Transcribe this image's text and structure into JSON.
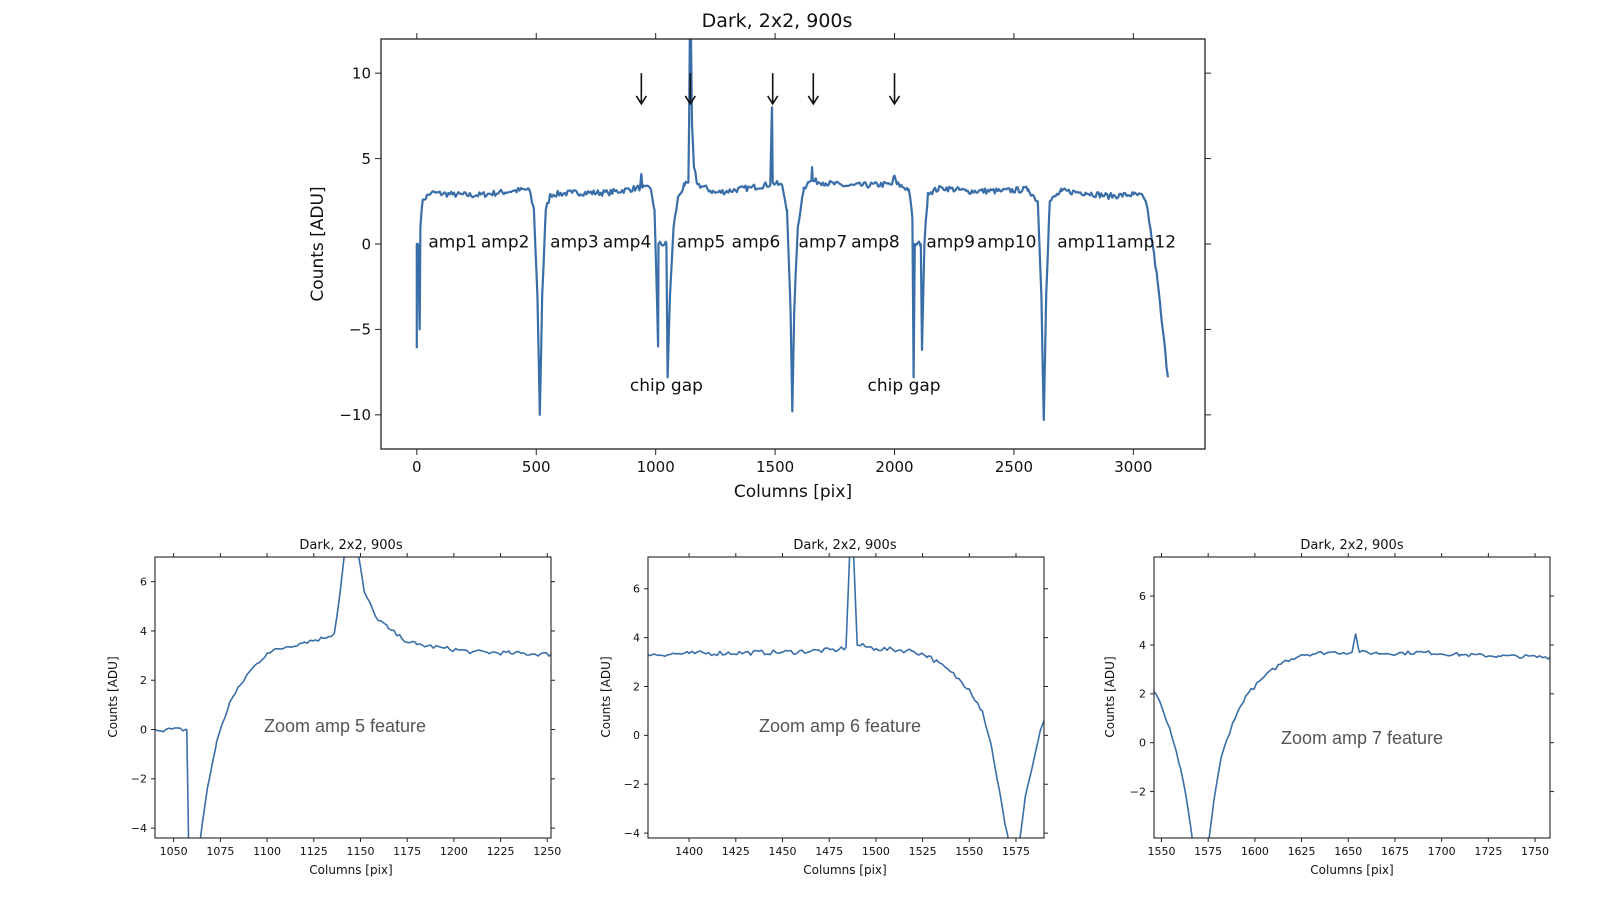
{
  "chart_data": [
    {
      "id": "main",
      "type": "line",
      "title": "Dark, 2x2, 900s",
      "xlabel": "Columns [pix]",
      "ylabel": "Counts [ADU]",
      "xlim": [
        -150,
        3300
      ],
      "ylim": [
        -12,
        12
      ],
      "xticks": [
        0,
        500,
        1000,
        1500,
        2000,
        2500,
        3000
      ],
      "yticks": [
        -10,
        -5,
        0,
        5,
        10
      ],
      "series_color": "#3a6ea8",
      "amp_labels": [
        {
          "text": "amp1",
          "x": 150
        },
        {
          "text": "amp2",
          "x": 370
        },
        {
          "text": "amp3",
          "x": 660
        },
        {
          "text": "amp4",
          "x": 880
        },
        {
          "text": "amp5",
          "x": 1190
        },
        {
          "text": "amp6",
          "x": 1420
        },
        {
          "text": "amp7",
          "x": 1700
        },
        {
          "text": "amp8",
          "x": 1920
        },
        {
          "text": "amp9",
          "x": 2235
        },
        {
          "text": "amp10",
          "x": 2470
        },
        {
          "text": "amp11amp12",
          "x": 2930
        }
      ],
      "annotations": [
        {
          "text": "chip gap",
          "x": 1045,
          "y": -8.6
        },
        {
          "text": "chip gap",
          "x": 2040,
          "y": -8.6
        }
      ],
      "arrows_at_x": [
        940,
        1145,
        1490,
        1660,
        2000
      ],
      "key_points": [
        [
          0,
          -6.1
        ],
        [
          0,
          0
        ],
        [
          5,
          0
        ],
        [
          12,
          -5
        ],
        [
          15,
          1
        ],
        [
          25,
          2.6
        ],
        [
          60,
          3
        ],
        [
          150,
          2.9
        ],
        [
          250,
          2.85
        ],
        [
          400,
          3.1
        ],
        [
          470,
          3.2
        ],
        [
          490,
          2
        ],
        [
          505,
          -3
        ],
        [
          515,
          -10
        ],
        [
          525,
          -3
        ],
        [
          540,
          2
        ],
        [
          560,
          2.9
        ],
        [
          650,
          3
        ],
        [
          800,
          3
        ],
        [
          935,
          3.3
        ],
        [
          940,
          4.1
        ],
        [
          945,
          3.3
        ],
        [
          980,
          3.2
        ],
        [
          995,
          2
        ],
        [
          1005,
          -3
        ],
        [
          1010,
          -6
        ],
        [
          1012,
          0
        ],
        [
          1045,
          0
        ],
        [
          1050,
          -7.8
        ],
        [
          1060,
          -3
        ],
        [
          1075,
          1
        ],
        [
          1095,
          2.8
        ],
        [
          1120,
          3.4
        ],
        [
          1137,
          3.6
        ],
        [
          1140,
          7
        ],
        [
          1143,
          12
        ],
        [
          1148,
          12
        ],
        [
          1152,
          7
        ],
        [
          1160,
          4.5
        ],
        [
          1175,
          3.5
        ],
        [
          1250,
          3
        ],
        [
          1400,
          3.3
        ],
        [
          1480,
          3.5
        ],
        [
          1487,
          8
        ],
        [
          1490,
          3.6
        ],
        [
          1530,
          3.4
        ],
        [
          1550,
          2
        ],
        [
          1565,
          -4
        ],
        [
          1572,
          -9.8
        ],
        [
          1580,
          -4
        ],
        [
          1595,
          1
        ],
        [
          1620,
          3.3
        ],
        [
          1640,
          3.6
        ],
        [
          1652,
          3.7
        ],
        [
          1655,
          4.5
        ],
        [
          1658,
          3.7
        ],
        [
          1700,
          3.6
        ],
        [
          1800,
          3.4
        ],
        [
          1990,
          3.5
        ],
        [
          2000,
          4
        ],
        [
          2010,
          3.5
        ],
        [
          2060,
          3.2
        ],
        [
          2075,
          1.5
        ],
        [
          2080,
          -7.8
        ],
        [
          2085,
          0
        ],
        [
          2110,
          0
        ],
        [
          2115,
          -6.2
        ],
        [
          2125,
          0
        ],
        [
          2140,
          3
        ],
        [
          2200,
          3.3
        ],
        [
          2300,
          3.1
        ],
        [
          2450,
          3.1
        ],
        [
          2560,
          3.2
        ],
        [
          2600,
          2.5
        ],
        [
          2615,
          -3
        ],
        [
          2625,
          -10.3
        ],
        [
          2635,
          -3
        ],
        [
          2650,
          2.5
        ],
        [
          2700,
          3.1
        ],
        [
          2800,
          3
        ],
        [
          2900,
          2.8
        ],
        [
          3000,
          2.9
        ],
        [
          3040,
          2.8
        ],
        [
          3060,
          2
        ],
        [
          3080,
          0
        ],
        [
          3100,
          -2
        ],
        [
          3115,
          -4
        ],
        [
          3145,
          -7.8
        ]
      ]
    },
    {
      "id": "zoom5",
      "type": "line",
      "title": "Dark, 2x2, 900s",
      "xlabel": "Columns [pix]",
      "ylabel": "Counts [ADU]",
      "note": "Zoom amp 5 feature",
      "xlim": [
        1040,
        1252
      ],
      "ylim": [
        -4.4,
        7
      ],
      "xticks": [
        1050,
        1075,
        1100,
        1125,
        1150,
        1175,
        1200,
        1225,
        1250
      ],
      "yticks": [
        -4,
        -2,
        0,
        2,
        4,
        6
      ],
      "key_points": [
        [
          1040,
          0
        ],
        [
          1057,
          0
        ],
        [
          1058,
          -4.6
        ],
        [
          1064,
          -4.6
        ],
        [
          1068,
          -2.4
        ],
        [
          1073,
          -0.5
        ],
        [
          1080,
          1.1
        ],
        [
          1090,
          2.3
        ],
        [
          1100,
          3.1
        ],
        [
          1110,
          3.35
        ],
        [
          1120,
          3.55
        ],
        [
          1130,
          3.7
        ],
        [
          1136,
          3.9
        ],
        [
          1139,
          5.5
        ],
        [
          1142,
          7.5
        ],
        [
          1148,
          7.5
        ],
        [
          1152,
          5.6
        ],
        [
          1158,
          4.6
        ],
        [
          1165,
          4.1
        ],
        [
          1172,
          3.7
        ],
        [
          1180,
          3.45
        ],
        [
          1195,
          3.3
        ],
        [
          1210,
          3.15
        ],
        [
          1230,
          3.1
        ],
        [
          1252,
          3.05
        ]
      ]
    },
    {
      "id": "zoom6",
      "type": "line",
      "title": "Dark, 2x2, 900s",
      "xlabel": "Columns [pix]",
      "ylabel": "Counts [ADU]",
      "note": "Zoom amp 6 feature",
      "xlim": [
        1378,
        1590
      ],
      "ylim": [
        -4.2,
        7.3
      ],
      "xticks": [
        1400,
        1425,
        1450,
        1475,
        1500,
        1525,
        1550,
        1575
      ],
      "yticks": [
        -4,
        -2,
        0,
        2,
        4,
        6
      ],
      "key_points": [
        [
          1378,
          3.3
        ],
        [
          1400,
          3.35
        ],
        [
          1450,
          3.4
        ],
        [
          1480,
          3.5
        ],
        [
          1484,
          3.6
        ],
        [
          1486,
          7.5
        ],
        [
          1488,
          7.5
        ],
        [
          1490,
          3.7
        ],
        [
          1500,
          3.55
        ],
        [
          1520,
          3.45
        ],
        [
          1528,
          3.25
        ],
        [
          1540,
          2.6
        ],
        [
          1550,
          1.9
        ],
        [
          1557,
          1
        ],
        [
          1562,
          -0.5
        ],
        [
          1566,
          -2.2
        ],
        [
          1569,
          -3.6
        ],
        [
          1571,
          -4.3
        ],
        [
          1577,
          -4.3
        ],
        [
          1580,
          -2.5
        ],
        [
          1584,
          -1.2
        ],
        [
          1588,
          0.2
        ],
        [
          1590,
          0.6
        ]
      ]
    },
    {
      "id": "zoom7",
      "type": "line",
      "title": "Dark, 2x2, 900s",
      "xlabel": "Columns [pix]",
      "ylabel": "Counts [ADU]",
      "note": "Zoom amp 7 feature",
      "xlim": [
        1546,
        1758
      ],
      "ylim": [
        -3.9,
        7.6
      ],
      "xticks": [
        1550,
        1575,
        1600,
        1625,
        1650,
        1675,
        1700,
        1725,
        1750
      ],
      "yticks": [
        -2,
        0,
        2,
        4,
        6
      ],
      "key_points": [
        [
          1546,
          2.1
        ],
        [
          1550,
          1.5
        ],
        [
          1555,
          0.4
        ],
        [
          1560,
          -1
        ],
        [
          1564,
          -2.6
        ],
        [
          1567,
          -4.2
        ],
        [
          1575,
          -4.2
        ],
        [
          1578,
          -2.4
        ],
        [
          1582,
          -0.6
        ],
        [
          1588,
          0.8
        ],
        [
          1595,
          1.9
        ],
        [
          1605,
          2.7
        ],
        [
          1615,
          3.3
        ],
        [
          1625,
          3.6
        ],
        [
          1640,
          3.7
        ],
        [
          1652,
          3.7
        ],
        [
          1654,
          4.45
        ],
        [
          1656,
          3.7
        ],
        [
          1670,
          3.65
        ],
        [
          1690,
          3.7
        ],
        [
          1710,
          3.6
        ],
        [
          1730,
          3.55
        ],
        [
          1758,
          3.5
        ]
      ]
    }
  ]
}
